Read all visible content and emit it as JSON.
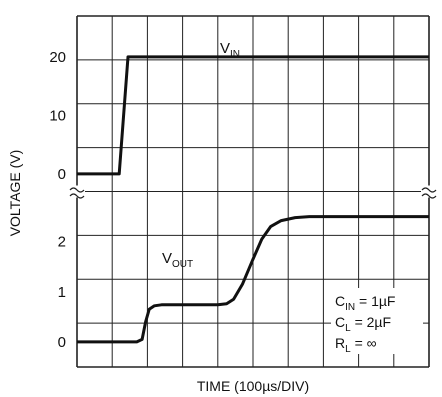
{
  "chart_data": {
    "type": "line",
    "xlabel": "TIME (100µs/DIV)",
    "ylabel": "VOLTAGE (V)",
    "grid": true,
    "x_divisions": 10,
    "y_divisions": 8,
    "axis_break": true,
    "panels": [
      {
        "name": "input",
        "ylim": [
          -3,
          27
        ],
        "yticks": [
          {
            "value": 0,
            "label": "0"
          },
          {
            "value": 10,
            "label": "10"
          },
          {
            "value": 20,
            "label": "20"
          }
        ],
        "series": [
          {
            "label_main": "V",
            "label_sub": "IN",
            "points": [
              [
                0,
                0
              ],
              [
                1.2,
                0
              ],
              [
                1.45,
                20
              ],
              [
                10,
                20
              ]
            ]
          }
        ]
      },
      {
        "name": "output",
        "ylim": [
          -0.5,
          3.0
        ],
        "yticks": [
          {
            "value": 0,
            "label": "0"
          },
          {
            "value": 1,
            "label": "1"
          },
          {
            "value": 2,
            "label": "2"
          }
        ],
        "series": [
          {
            "label_main": "V",
            "label_sub": "OUT",
            "points": [
              [
                0,
                0
              ],
              [
                1.7,
                0
              ],
              [
                1.85,
                0.05
              ],
              [
                1.95,
                0.4
              ],
              [
                2.05,
                0.65
              ],
              [
                2.2,
                0.72
              ],
              [
                2.4,
                0.74
              ],
              [
                4.0,
                0.74
              ],
              [
                4.25,
                0.76
              ],
              [
                4.45,
                0.85
              ],
              [
                4.7,
                1.15
              ],
              [
                5.0,
                1.65
              ],
              [
                5.25,
                2.05
              ],
              [
                5.5,
                2.3
              ],
              [
                5.8,
                2.42
              ],
              [
                6.2,
                2.48
              ],
              [
                6.6,
                2.5
              ],
              [
                10,
                2.5
              ]
            ]
          }
        ]
      }
    ],
    "conditions": [
      {
        "main": "C",
        "sub": "IN",
        "rest": " = 1µF"
      },
      {
        "main": "C",
        "sub": "L",
        "rest": " = 2µF"
      },
      {
        "main": "R",
        "sub": "L",
        "rest": " = ∞"
      }
    ]
  }
}
